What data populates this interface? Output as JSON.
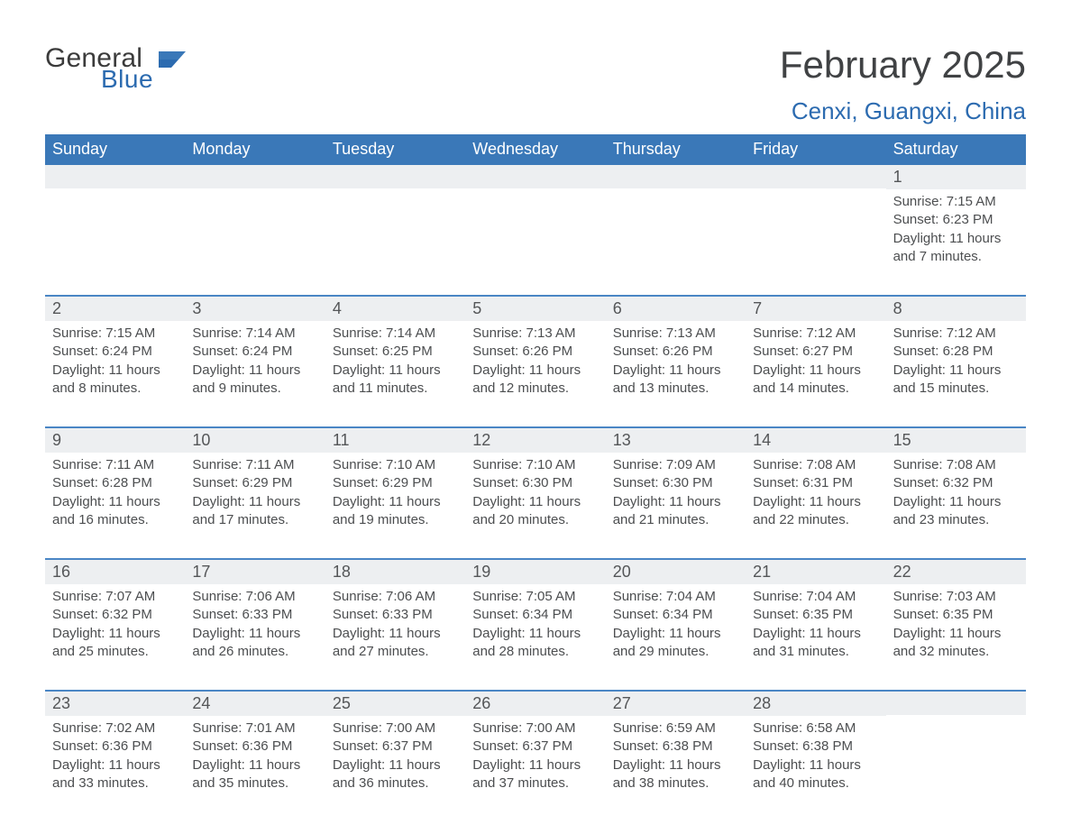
{
  "logo": {
    "word1": "General",
    "word2": "Blue"
  },
  "title": {
    "month": "February 2025",
    "location": "Cenxi, Guangxi, China"
  },
  "colors": {
    "header_blue": "#3a78b8",
    "accent_text": "#2c6bb0",
    "row_accent_border": "#4a86c5",
    "daynum_bg": "#edeff1",
    "text_dark": "#404244",
    "background": "#ffffff"
  },
  "weekdays": [
    "Sunday",
    "Monday",
    "Tuesday",
    "Wednesday",
    "Thursday",
    "Friday",
    "Saturday"
  ],
  "weeks": [
    [
      {
        "day": "",
        "sunrise": "",
        "sunset": "",
        "daylight": ""
      },
      {
        "day": "",
        "sunrise": "",
        "sunset": "",
        "daylight": ""
      },
      {
        "day": "",
        "sunrise": "",
        "sunset": "",
        "daylight": ""
      },
      {
        "day": "",
        "sunrise": "",
        "sunset": "",
        "daylight": ""
      },
      {
        "day": "",
        "sunrise": "",
        "sunset": "",
        "daylight": ""
      },
      {
        "day": "",
        "sunrise": "",
        "sunset": "",
        "daylight": ""
      },
      {
        "day": "1",
        "sunrise": "Sunrise: 7:15 AM",
        "sunset": "Sunset: 6:23 PM",
        "daylight": "Daylight: 11 hours and 7 minutes."
      }
    ],
    [
      {
        "day": "2",
        "sunrise": "Sunrise: 7:15 AM",
        "sunset": "Sunset: 6:24 PM",
        "daylight": "Daylight: 11 hours and 8 minutes."
      },
      {
        "day": "3",
        "sunrise": "Sunrise: 7:14 AM",
        "sunset": "Sunset: 6:24 PM",
        "daylight": "Daylight: 11 hours and 9 minutes."
      },
      {
        "day": "4",
        "sunrise": "Sunrise: 7:14 AM",
        "sunset": "Sunset: 6:25 PM",
        "daylight": "Daylight: 11 hours and 11 minutes."
      },
      {
        "day": "5",
        "sunrise": "Sunrise: 7:13 AM",
        "sunset": "Sunset: 6:26 PM",
        "daylight": "Daylight: 11 hours and 12 minutes."
      },
      {
        "day": "6",
        "sunrise": "Sunrise: 7:13 AM",
        "sunset": "Sunset: 6:26 PM",
        "daylight": "Daylight: 11 hours and 13 minutes."
      },
      {
        "day": "7",
        "sunrise": "Sunrise: 7:12 AM",
        "sunset": "Sunset: 6:27 PM",
        "daylight": "Daylight: 11 hours and 14 minutes."
      },
      {
        "day": "8",
        "sunrise": "Sunrise: 7:12 AM",
        "sunset": "Sunset: 6:28 PM",
        "daylight": "Daylight: 11 hours and 15 minutes."
      }
    ],
    [
      {
        "day": "9",
        "sunrise": "Sunrise: 7:11 AM",
        "sunset": "Sunset: 6:28 PM",
        "daylight": "Daylight: 11 hours and 16 minutes."
      },
      {
        "day": "10",
        "sunrise": "Sunrise: 7:11 AM",
        "sunset": "Sunset: 6:29 PM",
        "daylight": "Daylight: 11 hours and 17 minutes."
      },
      {
        "day": "11",
        "sunrise": "Sunrise: 7:10 AM",
        "sunset": "Sunset: 6:29 PM",
        "daylight": "Daylight: 11 hours and 19 minutes."
      },
      {
        "day": "12",
        "sunrise": "Sunrise: 7:10 AM",
        "sunset": "Sunset: 6:30 PM",
        "daylight": "Daylight: 11 hours and 20 minutes."
      },
      {
        "day": "13",
        "sunrise": "Sunrise: 7:09 AM",
        "sunset": "Sunset: 6:30 PM",
        "daylight": "Daylight: 11 hours and 21 minutes."
      },
      {
        "day": "14",
        "sunrise": "Sunrise: 7:08 AM",
        "sunset": "Sunset: 6:31 PM",
        "daylight": "Daylight: 11 hours and 22 minutes."
      },
      {
        "day": "15",
        "sunrise": "Sunrise: 7:08 AM",
        "sunset": "Sunset: 6:32 PM",
        "daylight": "Daylight: 11 hours and 23 minutes."
      }
    ],
    [
      {
        "day": "16",
        "sunrise": "Sunrise: 7:07 AM",
        "sunset": "Sunset: 6:32 PM",
        "daylight": "Daylight: 11 hours and 25 minutes."
      },
      {
        "day": "17",
        "sunrise": "Sunrise: 7:06 AM",
        "sunset": "Sunset: 6:33 PM",
        "daylight": "Daylight: 11 hours and 26 minutes."
      },
      {
        "day": "18",
        "sunrise": "Sunrise: 7:06 AM",
        "sunset": "Sunset: 6:33 PM",
        "daylight": "Daylight: 11 hours and 27 minutes."
      },
      {
        "day": "19",
        "sunrise": "Sunrise: 7:05 AM",
        "sunset": "Sunset: 6:34 PM",
        "daylight": "Daylight: 11 hours and 28 minutes."
      },
      {
        "day": "20",
        "sunrise": "Sunrise: 7:04 AM",
        "sunset": "Sunset: 6:34 PM",
        "daylight": "Daylight: 11 hours and 29 minutes."
      },
      {
        "day": "21",
        "sunrise": "Sunrise: 7:04 AM",
        "sunset": "Sunset: 6:35 PM",
        "daylight": "Daylight: 11 hours and 31 minutes."
      },
      {
        "day": "22",
        "sunrise": "Sunrise: 7:03 AM",
        "sunset": "Sunset: 6:35 PM",
        "daylight": "Daylight: 11 hours and 32 minutes."
      }
    ],
    [
      {
        "day": "23",
        "sunrise": "Sunrise: 7:02 AM",
        "sunset": "Sunset: 6:36 PM",
        "daylight": "Daylight: 11 hours and 33 minutes."
      },
      {
        "day": "24",
        "sunrise": "Sunrise: 7:01 AM",
        "sunset": "Sunset: 6:36 PM",
        "daylight": "Daylight: 11 hours and 35 minutes."
      },
      {
        "day": "25",
        "sunrise": "Sunrise: 7:00 AM",
        "sunset": "Sunset: 6:37 PM",
        "daylight": "Daylight: 11 hours and 36 minutes."
      },
      {
        "day": "26",
        "sunrise": "Sunrise: 7:00 AM",
        "sunset": "Sunset: 6:37 PM",
        "daylight": "Daylight: 11 hours and 37 minutes."
      },
      {
        "day": "27",
        "sunrise": "Sunrise: 6:59 AM",
        "sunset": "Sunset: 6:38 PM",
        "daylight": "Daylight: 11 hours and 38 minutes."
      },
      {
        "day": "28",
        "sunrise": "Sunrise: 6:58 AM",
        "sunset": "Sunset: 6:38 PM",
        "daylight": "Daylight: 11 hours and 40 minutes."
      },
      {
        "day": "",
        "sunrise": "",
        "sunset": "",
        "daylight": ""
      }
    ]
  ]
}
